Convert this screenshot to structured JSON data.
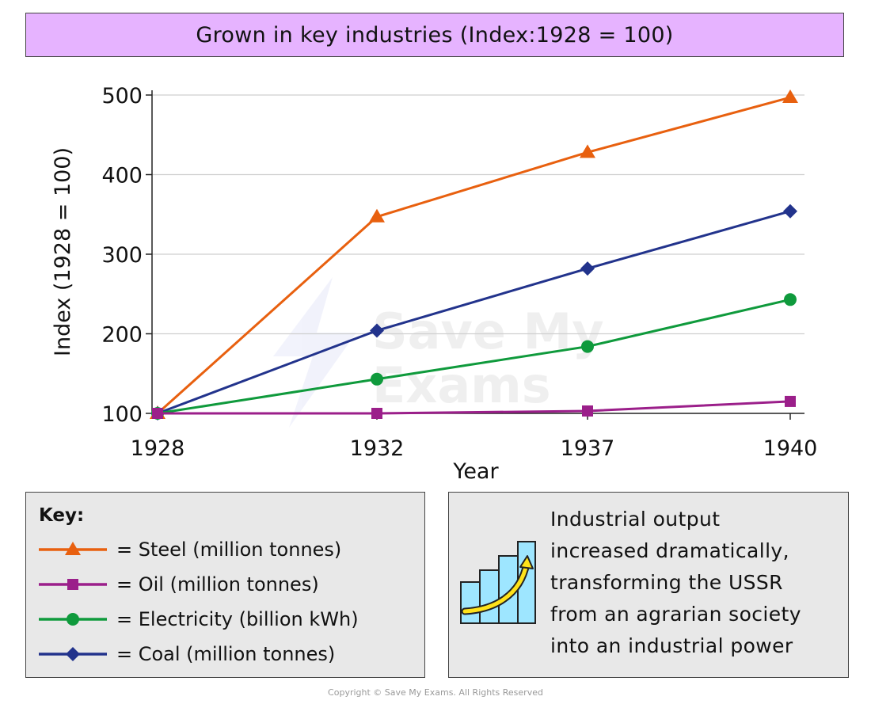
{
  "header": {
    "title": "Grown in key industries (Index:1928 = 100)"
  },
  "chart_data": {
    "type": "line",
    "title": "Grown in key industries (Index:1928 = 100)",
    "xlabel": "Year",
    "ylabel": "Index (1928 = 100)",
    "categories": [
      "1928",
      "1932",
      "1937",
      "1940"
    ],
    "x": [
      1928,
      1932,
      1937,
      1940
    ],
    "ylim": [
      100,
      500
    ],
    "yticks": [
      100,
      200,
      300,
      400,
      500
    ],
    "grid": true,
    "series": [
      {
        "name": "Steel (million tonnes)",
        "color": "#e8600f",
        "marker": "triangle",
        "values": [
          100,
          347,
          428,
          497
        ]
      },
      {
        "name": "Oil (million tonnes)",
        "color": "#9b1f8a",
        "marker": "square",
        "values": [
          100,
          100,
          103,
          115
        ]
      },
      {
        "name": "Electricity (billion kWh)",
        "color": "#0f9a3c",
        "marker": "circle",
        "values": [
          100,
          143,
          184,
          243
        ]
      },
      {
        "name": "Coal (million tonnes)",
        "color": "#22338c",
        "marker": "diamond",
        "values": [
          100,
          204,
          282,
          354
        ]
      }
    ]
  },
  "key": {
    "title": "Key:",
    "items": [
      {
        "label": "= Steel (million tonnes)",
        "color": "#e8600f",
        "marker": "triangle"
      },
      {
        "label": "= Oil (million tonnes)",
        "color": "#9b1f8a",
        "marker": "square"
      },
      {
        "label": "= Electricity (billion kWh)",
        "color": "#0f9a3c",
        "marker": "circle"
      },
      {
        "label": "= Coal (million tonnes)",
        "color": "#22338c",
        "marker": "diamond"
      }
    ]
  },
  "info": {
    "lines": [
      "Industrial output",
      "increased dramatically,",
      "transforming the USSR",
      "from an agrarian society",
      "into an industrial power"
    ],
    "icon": "growth-chart-icon"
  },
  "watermark": {
    "line1": "Save My",
    "line2": "Exams"
  },
  "footer": {
    "copyright": "Copyright © Save My Exams. All Rights Reserved"
  }
}
